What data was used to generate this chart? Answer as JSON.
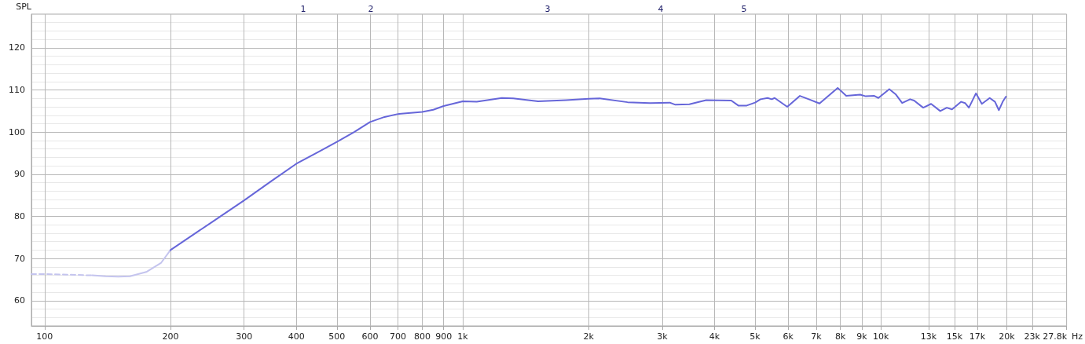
{
  "chart_data": {
    "type": "line",
    "ylabel": "SPL",
    "xlim": [
      93,
      27800
    ],
    "ylim": [
      54,
      128
    ],
    "xticks": [
      100,
      200,
      300,
      400,
      500,
      600,
      700,
      800,
      900,
      {
        "value": 1000,
        "label": "1k"
      },
      {
        "value": 2000,
        "label": "2k"
      },
      {
        "value": 3000,
        "label": "3k"
      },
      {
        "value": 4000,
        "label": "4k"
      },
      {
        "value": 5000,
        "label": "5k"
      },
      {
        "value": 6000,
        "label": "6k"
      },
      {
        "value": 7000,
        "label": "7k"
      },
      {
        "value": 8000,
        "label": "8k"
      },
      {
        "value": 9000,
        "label": "9k"
      },
      {
        "value": 10000,
        "label": "10k"
      },
      {
        "value": 13000,
        "label": "13k"
      },
      {
        "value": 15000,
        "label": "15k"
      },
      {
        "value": 17000,
        "label": "17k"
      },
      {
        "value": 20000,
        "label": "20k"
      },
      {
        "value": 23000,
        "label": "23k"
      },
      {
        "value": 27800,
        "label": "27.8k"
      }
    ],
    "xlabel": "Hz",
    "yticks": [
      60,
      70,
      80,
      90,
      100,
      110,
      120
    ],
    "grid": true,
    "log": "x",
    "marker": "none",
    "series": [
      {
        "color": "#c4c4ee",
        "line_style": "dashed",
        "x": [
          93,
          100,
          110,
          120,
          130
        ],
        "values": [
          66.3,
          66.3,
          66.2,
          66.1,
          66.0
        ]
      },
      {
        "color": "#c4c4ee",
        "line_style": "solid",
        "x": [
          130,
          140,
          150,
          160,
          175,
          190,
          200
        ],
        "values": [
          66.0,
          65.8,
          65.7,
          65.8,
          66.8,
          69,
          72
        ]
      },
      {
        "color": "#6666d9",
        "line_style": "solid",
        "x": [
          200,
          250,
          300,
          350,
          400,
          450,
          500,
          550,
          600,
          650,
          700,
          800,
          850,
          900,
          1000,
          1080,
          1240,
          1320,
          1514,
          1767,
          2000,
          2125,
          2477,
          2805,
          3126,
          3224,
          3483,
          3820,
          4385,
          4560,
          4776,
          5000,
          5153,
          5358,
          5480,
          5570,
          5970,
          6400,
          6760,
          7130,
          7880,
          8260,
          8920,
          9200,
          9640,
          9860,
          10470,
          10840,
          11240,
          11740,
          12000,
          12620,
          13180,
          13860,
          14370,
          14790,
          15550,
          15890,
          16230,
          16870,
          17430,
          18200,
          18740,
          19140,
          19550,
          19890
        ],
        "values": [
          72,
          78.5,
          83.8,
          88.5,
          92.5,
          95.2,
          97.7,
          100,
          102.4,
          103.6,
          104.3,
          104.8,
          105.3,
          106.2,
          107.3,
          107.2,
          108.1,
          108.0,
          107.3,
          107.6,
          107.9,
          108.0,
          107.1,
          106.9,
          107.0,
          106.5,
          106.6,
          107.6,
          107.5,
          106.3,
          106.3,
          107.0,
          107.8,
          108.1,
          107.8,
          108.1,
          106.0,
          108.6,
          107.7,
          106.8,
          110.5,
          108.6,
          108.9,
          108.5,
          108.6,
          108.1,
          110.2,
          109.0,
          106.9,
          107.8,
          107.5,
          105.8,
          106.7,
          105.0,
          105.8,
          105.4,
          107.2,
          106.9,
          105.8,
          109.2,
          106.7,
          108.1,
          107.2,
          105.2,
          107.2,
          108.4
        ]
      }
    ],
    "annotations": [
      "1",
      "2",
      "3",
      "4",
      "5"
    ]
  }
}
